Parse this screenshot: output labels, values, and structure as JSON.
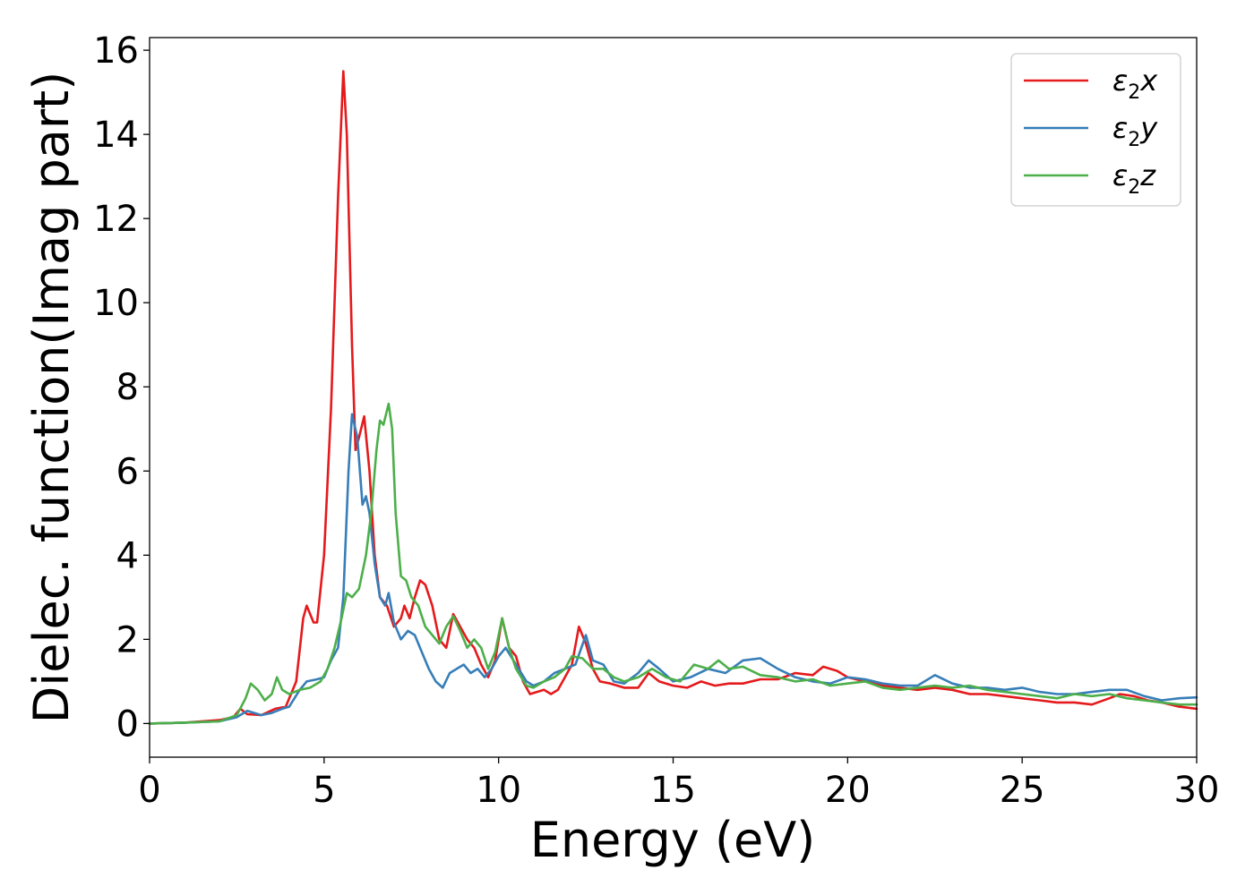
{
  "chart_data": {
    "type": "line",
    "title": "",
    "xlabel": "Energy (eV)",
    "ylabel": "Dielec. function(Imag part)",
    "xlim": [
      0,
      30
    ],
    "ylim": [
      -0.8,
      16.3
    ],
    "xticks": [
      0,
      5,
      10,
      15,
      20,
      25,
      30
    ],
    "yticks": [
      0,
      2,
      4,
      6,
      8,
      10,
      12,
      14,
      16
    ],
    "grid": false,
    "legend_position": "top-right",
    "series": [
      {
        "name": "ε₂x",
        "legend": {
          "base": "ε",
          "sub": "2",
          "var": "x"
        },
        "color": "#e41a1c",
        "points": [
          [
            0,
            0
          ],
          [
            1,
            0.02
          ],
          [
            2,
            0.08
          ],
          [
            2.4,
            0.15
          ],
          [
            2.6,
            0.35
          ],
          [
            2.8,
            0.22
          ],
          [
            3.2,
            0.2
          ],
          [
            3.6,
            0.35
          ],
          [
            3.9,
            0.4
          ],
          [
            4.2,
            1.0
          ],
          [
            4.4,
            2.5
          ],
          [
            4.5,
            2.8
          ],
          [
            4.7,
            2.4
          ],
          [
            4.8,
            2.4
          ],
          [
            5.0,
            4.0
          ],
          [
            5.2,
            7.5
          ],
          [
            5.4,
            12.5
          ],
          [
            5.55,
            15.5
          ],
          [
            5.65,
            14.0
          ],
          [
            5.8,
            9.0
          ],
          [
            5.9,
            6.5
          ],
          [
            6.0,
            6.8
          ],
          [
            6.15,
            7.3
          ],
          [
            6.3,
            6.0
          ],
          [
            6.45,
            4.0
          ],
          [
            6.6,
            3.0
          ],
          [
            6.8,
            2.8
          ],
          [
            7.0,
            2.3
          ],
          [
            7.2,
            2.5
          ],
          [
            7.3,
            2.8
          ],
          [
            7.45,
            2.5
          ],
          [
            7.6,
            3.0
          ],
          [
            7.75,
            3.4
          ],
          [
            7.9,
            3.3
          ],
          [
            8.1,
            2.8
          ],
          [
            8.3,
            2.0
          ],
          [
            8.5,
            1.8
          ],
          [
            8.7,
            2.6
          ],
          [
            8.9,
            2.3
          ],
          [
            9.1,
            2.0
          ],
          [
            9.3,
            1.8
          ],
          [
            9.5,
            1.4
          ],
          [
            9.7,
            1.1
          ],
          [
            9.9,
            1.5
          ],
          [
            10.1,
            2.5
          ],
          [
            10.3,
            1.8
          ],
          [
            10.5,
            1.6
          ],
          [
            10.7,
            1.0
          ],
          [
            10.9,
            0.7
          ],
          [
            11.1,
            0.75
          ],
          [
            11.3,
            0.8
          ],
          [
            11.5,
            0.7
          ],
          [
            11.7,
            0.8
          ],
          [
            11.9,
            1.1
          ],
          [
            12.1,
            1.4
          ],
          [
            12.3,
            2.3
          ],
          [
            12.5,
            1.9
          ],
          [
            12.7,
            1.3
          ],
          [
            12.9,
            1.0
          ],
          [
            13.2,
            0.95
          ],
          [
            13.6,
            0.85
          ],
          [
            14.0,
            0.85
          ],
          [
            14.3,
            1.2
          ],
          [
            14.6,
            1.0
          ],
          [
            15.0,
            0.9
          ],
          [
            15.4,
            0.85
          ],
          [
            15.8,
            1.0
          ],
          [
            16.2,
            0.9
          ],
          [
            16.6,
            0.95
          ],
          [
            17.0,
            0.95
          ],
          [
            17.5,
            1.05
          ],
          [
            18.0,
            1.05
          ],
          [
            18.5,
            1.2
          ],
          [
            19.0,
            1.15
          ],
          [
            19.3,
            1.35
          ],
          [
            19.7,
            1.25
          ],
          [
            20.0,
            1.1
          ],
          [
            20.5,
            1.0
          ],
          [
            21.0,
            0.9
          ],
          [
            21.5,
            0.85
          ],
          [
            22.0,
            0.8
          ],
          [
            22.5,
            0.85
          ],
          [
            23.0,
            0.8
          ],
          [
            23.5,
            0.7
          ],
          [
            24.0,
            0.7
          ],
          [
            24.5,
            0.65
          ],
          [
            25.0,
            0.6
          ],
          [
            25.5,
            0.55
          ],
          [
            26.0,
            0.5
          ],
          [
            26.5,
            0.5
          ],
          [
            27.0,
            0.45
          ],
          [
            27.5,
            0.6
          ],
          [
            27.8,
            0.7
          ],
          [
            28.2,
            0.65
          ],
          [
            28.6,
            0.55
          ],
          [
            29.0,
            0.5
          ],
          [
            29.5,
            0.4
          ],
          [
            30.0,
            0.35
          ]
        ]
      },
      {
        "name": "ε₂y",
        "legend": {
          "base": "ε",
          "sub": "2",
          "var": "y"
        },
        "color": "#377eb8",
        "points": [
          [
            0,
            0
          ],
          [
            1,
            0.02
          ],
          [
            2,
            0.05
          ],
          [
            2.5,
            0.15
          ],
          [
            2.8,
            0.3
          ],
          [
            3.0,
            0.25
          ],
          [
            3.2,
            0.2
          ],
          [
            3.5,
            0.25
          ],
          [
            3.8,
            0.35
          ],
          [
            4.0,
            0.4
          ],
          [
            4.3,
            0.8
          ],
          [
            4.5,
            1.0
          ],
          [
            4.8,
            1.05
          ],
          [
            5.0,
            1.1
          ],
          [
            5.2,
            1.5
          ],
          [
            5.4,
            1.8
          ],
          [
            5.55,
            3.0
          ],
          [
            5.7,
            6.0
          ],
          [
            5.8,
            7.35
          ],
          [
            5.95,
            6.8
          ],
          [
            6.1,
            5.2
          ],
          [
            6.2,
            5.4
          ],
          [
            6.3,
            5.0
          ],
          [
            6.45,
            3.8
          ],
          [
            6.6,
            3.0
          ],
          [
            6.75,
            2.8
          ],
          [
            6.85,
            3.1
          ],
          [
            7.0,
            2.4
          ],
          [
            7.2,
            2.0
          ],
          [
            7.4,
            2.2
          ],
          [
            7.6,
            2.1
          ],
          [
            7.8,
            1.7
          ],
          [
            8.0,
            1.3
          ],
          [
            8.2,
            1.0
          ],
          [
            8.4,
            0.85
          ],
          [
            8.6,
            1.2
          ],
          [
            8.8,
            1.3
          ],
          [
            9.0,
            1.4
          ],
          [
            9.2,
            1.2
          ],
          [
            9.4,
            1.3
          ],
          [
            9.6,
            1.1
          ],
          [
            9.8,
            1.3
          ],
          [
            10.0,
            1.6
          ],
          [
            10.2,
            1.8
          ],
          [
            10.5,
            1.4
          ],
          [
            10.8,
            1.0
          ],
          [
            11.0,
            0.9
          ],
          [
            11.3,
            1.0
          ],
          [
            11.6,
            1.2
          ],
          [
            11.9,
            1.3
          ],
          [
            12.2,
            1.4
          ],
          [
            12.5,
            2.1
          ],
          [
            12.7,
            1.5
          ],
          [
            13.0,
            1.4
          ],
          [
            13.3,
            1.0
          ],
          [
            13.6,
            0.95
          ],
          [
            14.0,
            1.2
          ],
          [
            14.3,
            1.5
          ],
          [
            14.6,
            1.3
          ],
          [
            15.0,
            1.0
          ],
          [
            15.5,
            1.1
          ],
          [
            16.0,
            1.3
          ],
          [
            16.5,
            1.2
          ],
          [
            17.0,
            1.5
          ],
          [
            17.5,
            1.55
          ],
          [
            18.0,
            1.3
          ],
          [
            18.5,
            1.1
          ],
          [
            19.0,
            1.0
          ],
          [
            19.5,
            0.95
          ],
          [
            20.0,
            1.1
          ],
          [
            20.5,
            1.05
          ],
          [
            21.0,
            0.95
          ],
          [
            21.5,
            0.9
          ],
          [
            22.0,
            0.9
          ],
          [
            22.5,
            1.15
          ],
          [
            23.0,
            0.95
          ],
          [
            23.5,
            0.85
          ],
          [
            24.0,
            0.85
          ],
          [
            24.5,
            0.8
          ],
          [
            25.0,
            0.85
          ],
          [
            25.5,
            0.75
          ],
          [
            26.0,
            0.7
          ],
          [
            26.5,
            0.7
          ],
          [
            27.0,
            0.75
          ],
          [
            27.5,
            0.8
          ],
          [
            28.0,
            0.8
          ],
          [
            28.5,
            0.65
          ],
          [
            29.0,
            0.55
          ],
          [
            29.5,
            0.6
          ],
          [
            30.0,
            0.62
          ]
        ]
      },
      {
        "name": "ε₂z",
        "legend": {
          "base": "ε",
          "sub": "2",
          "var": "z"
        },
        "color": "#4daf4a",
        "points": [
          [
            0,
            0
          ],
          [
            1,
            0.02
          ],
          [
            2,
            0.05
          ],
          [
            2.5,
            0.2
          ],
          [
            2.75,
            0.6
          ],
          [
            2.9,
            0.95
          ],
          [
            3.1,
            0.8
          ],
          [
            3.3,
            0.55
          ],
          [
            3.5,
            0.7
          ],
          [
            3.65,
            1.1
          ],
          [
            3.8,
            0.8
          ],
          [
            4.0,
            0.7
          ],
          [
            4.3,
            0.8
          ],
          [
            4.6,
            0.85
          ],
          [
            4.9,
            1.0
          ],
          [
            5.1,
            1.3
          ],
          [
            5.3,
            1.8
          ],
          [
            5.5,
            2.5
          ],
          [
            5.65,
            3.1
          ],
          [
            5.8,
            3.0
          ],
          [
            6.0,
            3.2
          ],
          [
            6.2,
            4.0
          ],
          [
            6.35,
            5.0
          ],
          [
            6.5,
            6.5
          ],
          [
            6.6,
            7.2
          ],
          [
            6.7,
            7.1
          ],
          [
            6.85,
            7.6
          ],
          [
            6.95,
            7.0
          ],
          [
            7.05,
            5.0
          ],
          [
            7.2,
            3.5
          ],
          [
            7.35,
            3.4
          ],
          [
            7.5,
            3.0
          ],
          [
            7.7,
            2.8
          ],
          [
            7.9,
            2.3
          ],
          [
            8.1,
            2.1
          ],
          [
            8.3,
            1.9
          ],
          [
            8.5,
            2.3
          ],
          [
            8.7,
            2.55
          ],
          [
            8.9,
            2.2
          ],
          [
            9.1,
            1.8
          ],
          [
            9.3,
            2.0
          ],
          [
            9.5,
            1.8
          ],
          [
            9.7,
            1.3
          ],
          [
            9.9,
            1.7
          ],
          [
            10.1,
            2.5
          ],
          [
            10.3,
            1.8
          ],
          [
            10.5,
            1.3
          ],
          [
            10.8,
            0.9
          ],
          [
            11.0,
            0.85
          ],
          [
            11.3,
            1.0
          ],
          [
            11.6,
            1.1
          ],
          [
            11.9,
            1.3
          ],
          [
            12.1,
            1.6
          ],
          [
            12.4,
            1.55
          ],
          [
            12.7,
            1.3
          ],
          [
            13.0,
            1.3
          ],
          [
            13.3,
            1.1
          ],
          [
            13.6,
            1.0
          ],
          [
            14.0,
            1.1
          ],
          [
            14.4,
            1.3
          ],
          [
            14.8,
            1.1
          ],
          [
            15.2,
            1.0
          ],
          [
            15.6,
            1.4
          ],
          [
            16.0,
            1.3
          ],
          [
            16.3,
            1.5
          ],
          [
            16.6,
            1.3
          ],
          [
            17.0,
            1.35
          ],
          [
            17.5,
            1.15
          ],
          [
            18.0,
            1.1
          ],
          [
            18.5,
            1.0
          ],
          [
            19.0,
            1.05
          ],
          [
            19.5,
            0.9
          ],
          [
            20.0,
            0.95
          ],
          [
            20.5,
            1.0
          ],
          [
            21.0,
            0.85
          ],
          [
            21.5,
            0.8
          ],
          [
            22.0,
            0.85
          ],
          [
            22.5,
            0.9
          ],
          [
            23.0,
            0.85
          ],
          [
            23.5,
            0.9
          ],
          [
            24.0,
            0.8
          ],
          [
            24.5,
            0.75
          ],
          [
            25.0,
            0.7
          ],
          [
            25.5,
            0.65
          ],
          [
            26.0,
            0.6
          ],
          [
            26.5,
            0.7
          ],
          [
            27.0,
            0.65
          ],
          [
            27.5,
            0.7
          ],
          [
            28.0,
            0.6
          ],
          [
            28.5,
            0.55
          ],
          [
            29.0,
            0.5
          ],
          [
            29.5,
            0.45
          ],
          [
            30.0,
            0.45
          ]
        ]
      }
    ]
  }
}
